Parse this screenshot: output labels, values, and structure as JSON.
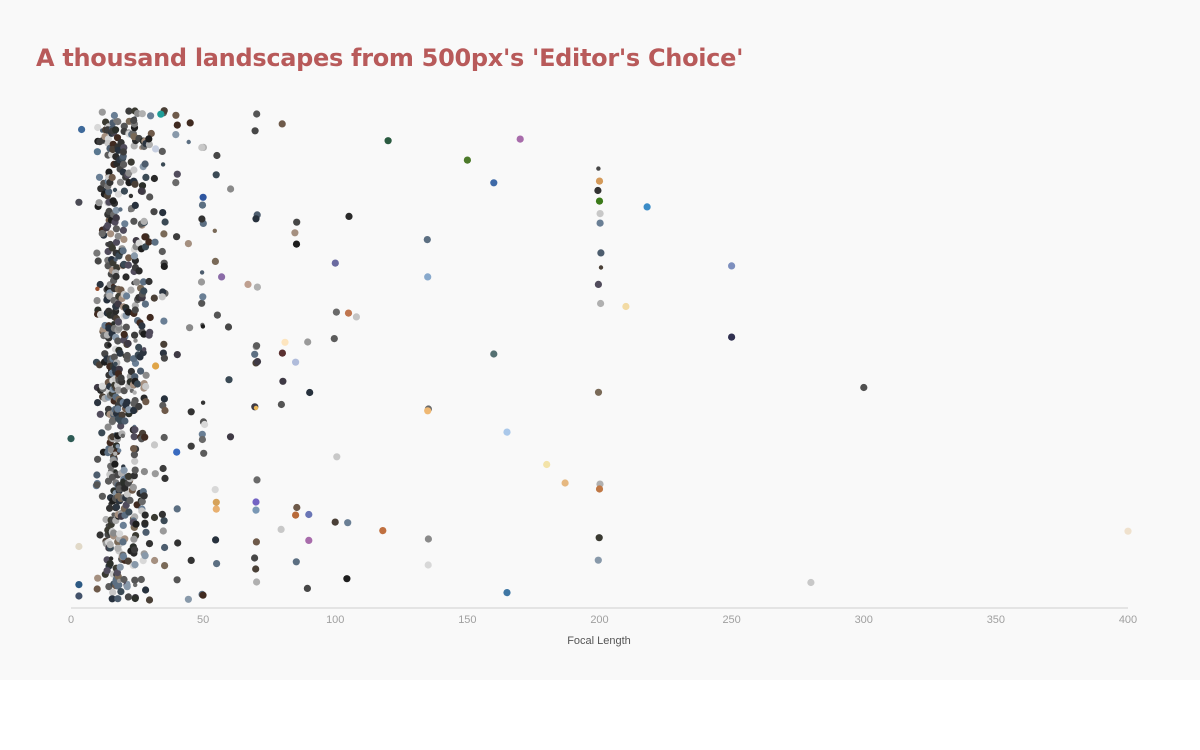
{
  "chart_data": {
    "type": "scatter",
    "title": "A thousand landscapes from 500px's 'Editor's Choice'",
    "xlabel": "Focal Length",
    "ylabel": "",
    "xlim": [
      0,
      400
    ],
    "x_ticks": [
      "0",
      "50",
      "100",
      "150",
      "200",
      "250",
      "300",
      "350",
      "400"
    ],
    "grid": false,
    "y_encoding": "random jitter (no y axis)",
    "point_count": 1000,
    "color_note": "each point is colored by the dominant color of its photo",
    "highlighted_points": [
      {
        "x": 3,
        "color": "#43526a"
      },
      {
        "x": 0,
        "color": "#2e5b55"
      },
      {
        "x": 4,
        "color": "#3f6a9b"
      },
      {
        "x": 3,
        "color": "#e1d9c8"
      },
      {
        "x": 3,
        "color": "#4b4b55"
      },
      {
        "x": 3,
        "color": "#2d5a84"
      },
      {
        "x": 10,
        "color": "#9a5030"
      },
      {
        "x": 10,
        "color": "#5a7890"
      },
      {
        "x": 34,
        "color": "#1f9e99"
      },
      {
        "x": 32,
        "color": "#e0a548"
      },
      {
        "x": 32,
        "color": "#c7cfe0"
      },
      {
        "x": 40,
        "color": "#3a6bc0"
      },
      {
        "x": 50,
        "color": "#343434"
      },
      {
        "x": 50,
        "color": "#2e56a0"
      },
      {
        "x": 55,
        "color": "#e8b070"
      },
      {
        "x": 55,
        "color": "#d6a25a"
      },
      {
        "x": 57,
        "color": "#8b6ca8"
      },
      {
        "x": 67,
        "color": "#bfa090"
      },
      {
        "x": 70,
        "color": "#7363c4"
      },
      {
        "x": 70,
        "color": "#e8b556"
      },
      {
        "x": 70,
        "color": "#7a98b5"
      },
      {
        "x": 80,
        "color": "#5a3030"
      },
      {
        "x": 81,
        "color": "#fde5bf"
      },
      {
        "x": 85,
        "color": "#b86a3a"
      },
      {
        "x": 85,
        "color": "#b0bcdb"
      },
      {
        "x": 90,
        "color": "#6a76b6"
      },
      {
        "x": 90,
        "color": "#a86cab"
      },
      {
        "x": 100,
        "color": "#6a6aa0"
      },
      {
        "x": 105,
        "color": "#c0764f"
      },
      {
        "x": 108,
        "color": "#c4c4c4"
      },
      {
        "x": 118,
        "color": "#c07040"
      },
      {
        "x": 120,
        "color": "#2a5a40"
      },
      {
        "x": 135,
        "color": "#88a9cc"
      },
      {
        "x": 135,
        "color": "#efb873"
      },
      {
        "x": 150,
        "color": "#4c7a2a"
      },
      {
        "x": 160,
        "color": "#557072"
      },
      {
        "x": 160,
        "color": "#3e6aa8"
      },
      {
        "x": 165,
        "color": "#aac8ea"
      },
      {
        "x": 165,
        "color": "#3f77a4"
      },
      {
        "x": 170,
        "color": "#a86cab"
      },
      {
        "x": 180,
        "color": "#f3e3a9"
      },
      {
        "x": 187,
        "color": "#e6b880"
      },
      {
        "x": 200,
        "color": "#3c7a1a"
      },
      {
        "x": 200,
        "color": "#d49a5a"
      },
      {
        "x": 200,
        "color": "#c07845"
      },
      {
        "x": 210,
        "color": "#f3dba4"
      },
      {
        "x": 218,
        "color": "#3b8cc7"
      },
      {
        "x": 250,
        "color": "#7d8fbe"
      },
      {
        "x": 250,
        "color": "#303050"
      },
      {
        "x": 280,
        "color": "#c8c8c8"
      },
      {
        "x": 300,
        "color": "#505050"
      },
      {
        "x": 400,
        "color": "#efe1cd"
      }
    ]
  }
}
